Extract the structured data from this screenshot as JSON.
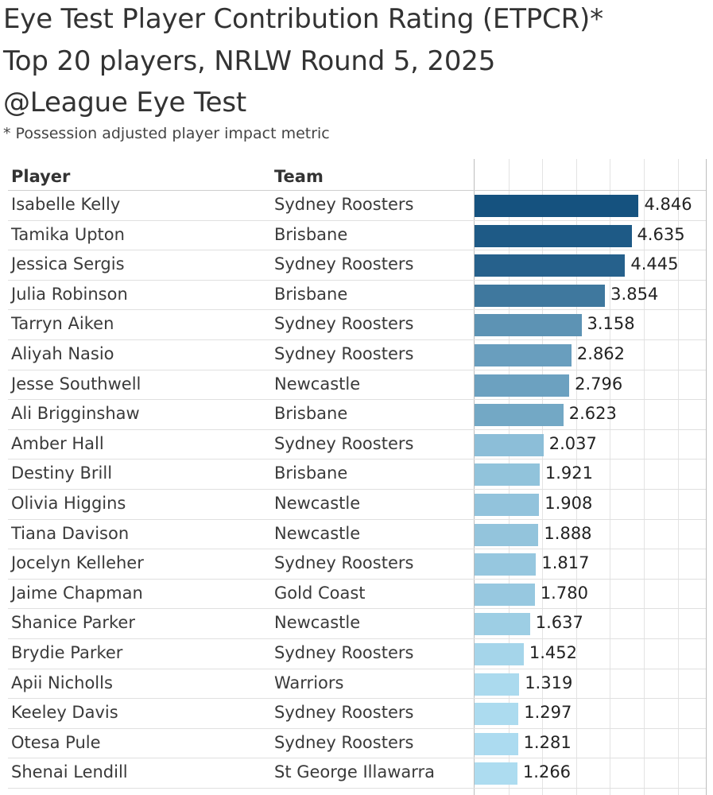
{
  "header": {
    "title_line1": "Eye Test Player Contribution Rating (ETPCR)*",
    "title_line2": "Top 20 players, NRLW Round 5, 2025",
    "title_line3": "@League Eye Test",
    "subtitle": "* Possession adjusted player impact metric"
  },
  "table": {
    "col_player": "Player",
    "col_team": "Team"
  },
  "colors": {
    "darkest": "#15527f",
    "lightest": "#addcf0"
  },
  "chart_data": {
    "type": "bar",
    "orientation": "horizontal",
    "categories": [
      "Isabelle Kelly",
      "Tamika Upton",
      "Jessica Sergis",
      "Julia Robinson",
      "Tarryn Aiken",
      "Aliyah Nasio",
      "Jesse Southwell",
      "Ali Brigginshaw",
      "Amber Hall",
      "Destiny Brill",
      "Olivia Higgins",
      "Tiana Davison",
      "Jocelyn Kelleher",
      "Jaime Chapman",
      "Shanice Parker",
      "Brydie Parker",
      "Apii Nicholls",
      "Keeley Davis",
      "Otesa Pule",
      "Shenai Lendill"
    ],
    "teams": [
      "Sydney Roosters",
      "Brisbane",
      "Sydney Roosters",
      "Brisbane",
      "Sydney Roosters",
      "Sydney Roosters",
      "Newcastle",
      "Brisbane",
      "Sydney Roosters",
      "Brisbane",
      "Newcastle",
      "Newcastle",
      "Sydney Roosters",
      "Gold Coast",
      "Newcastle",
      "Sydney Roosters",
      "Warriors",
      "Sydney Roosters",
      "Sydney Roosters",
      "St George Illawarra"
    ],
    "values": [
      4.846,
      4.635,
      4.445,
      3.854,
      3.158,
      2.862,
      2.796,
      2.623,
      2.037,
      1.921,
      1.908,
      1.888,
      1.817,
      1.78,
      1.637,
      1.452,
      1.319,
      1.297,
      1.281,
      1.266
    ],
    "value_labels": [
      "4.846",
      "4.635",
      "4.445",
      "3.854",
      "3.158",
      "2.862",
      "2.796",
      "2.623",
      "2.037",
      "1.921",
      "1.908",
      "1.888",
      "1.817",
      "1.780",
      "1.637",
      "1.452",
      "1.319",
      "1.297",
      "1.281",
      "1.266"
    ],
    "xlim": [
      0,
      7
    ],
    "grid": true,
    "color_encoding": "sequential blue by value"
  }
}
